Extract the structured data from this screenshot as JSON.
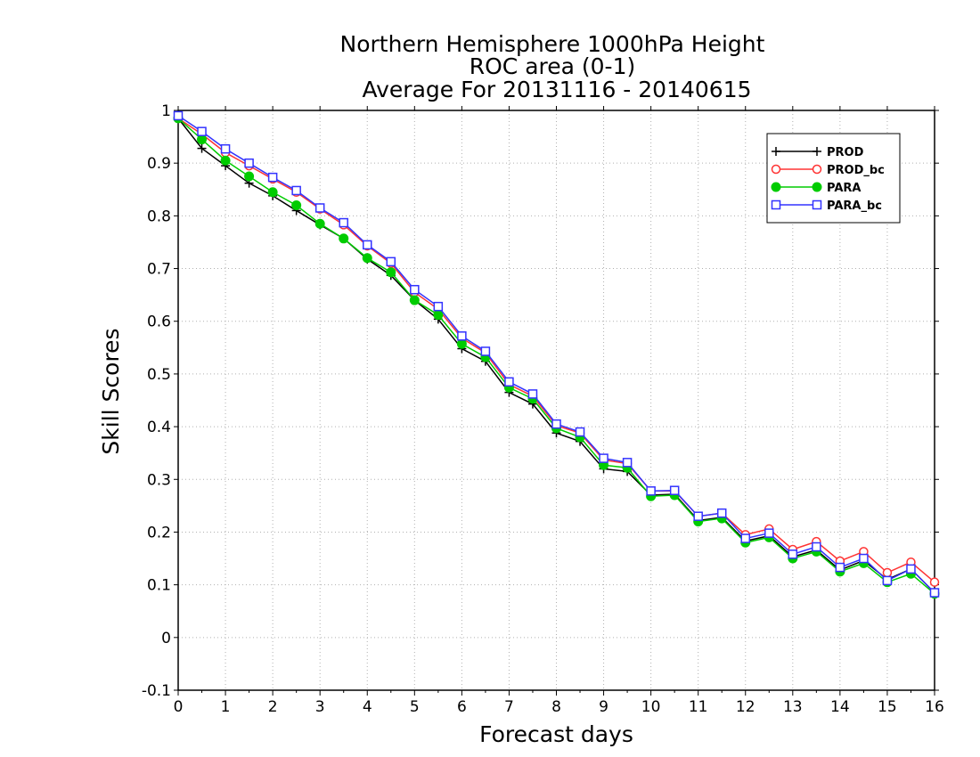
{
  "chart_data": {
    "type": "line",
    "title": [
      "Northern Hemisphere 1000hPa Height",
      "ROC area (0-1)",
      "Average For 20131116 - 20140615"
    ],
    "xlabel": "Forecast days",
    "ylabel": "Skill Scores",
    "xlim": [
      0,
      16
    ],
    "ylim": [
      -0.1,
      1
    ],
    "xticks": [
      "0",
      "1",
      "2",
      "3",
      "4",
      "5",
      "6",
      "7",
      "8",
      "9",
      "10",
      "11",
      "12",
      "13",
      "14",
      "15",
      "16"
    ],
    "yticks": [
      "-0.1",
      "0",
      "0.1",
      "0.2",
      "0.3",
      "0.4",
      "0.5",
      "0.6",
      "0.7",
      "0.8",
      "0.9",
      "1"
    ],
    "grid": true,
    "legend_position": "top-right",
    "x": [
      0,
      0.5,
      1,
      1.5,
      2,
      2.5,
      3,
      3.5,
      4,
      4.5,
      5,
      5.5,
      6,
      6.5,
      7,
      7.5,
      8,
      8.5,
      9,
      9.5,
      10,
      10.5,
      11,
      11.5,
      12,
      12.5,
      13,
      13.5,
      14,
      14.5,
      15,
      15.5,
      16
    ],
    "series": [
      {
        "name": "PROD",
        "color": "#000000",
        "marker": "plus",
        "values": [
          0.985,
          0.928,
          0.895,
          0.862,
          0.838,
          0.81,
          0.783,
          0.757,
          0.718,
          0.687,
          0.64,
          0.604,
          0.548,
          0.524,
          0.465,
          0.443,
          0.388,
          0.372,
          0.32,
          0.315,
          0.27,
          0.272,
          0.222,
          0.228,
          0.183,
          0.193,
          0.153,
          0.166,
          0.128,
          0.146,
          0.11,
          0.13,
          0.085
        ]
      },
      {
        "name": "PROD_bc",
        "color": "#ff3333",
        "marker": "circle-open",
        "values": [
          0.985,
          0.955,
          0.92,
          0.895,
          0.87,
          0.845,
          0.813,
          0.783,
          0.743,
          0.71,
          0.655,
          0.623,
          0.568,
          0.54,
          0.48,
          0.458,
          0.402,
          0.388,
          0.337,
          0.33,
          0.278,
          0.278,
          0.23,
          0.236,
          0.195,
          0.206,
          0.167,
          0.182,
          0.145,
          0.163,
          0.123,
          0.143,
          0.105
        ]
      },
      {
        "name": "PARA",
        "color": "#00cc00",
        "marker": "circle-filled",
        "values": [
          0.985,
          0.945,
          0.905,
          0.875,
          0.845,
          0.82,
          0.785,
          0.757,
          0.72,
          0.693,
          0.64,
          0.612,
          0.557,
          0.532,
          0.474,
          0.453,
          0.397,
          0.38,
          0.327,
          0.322,
          0.268,
          0.27,
          0.22,
          0.226,
          0.18,
          0.19,
          0.15,
          0.163,
          0.125,
          0.141,
          0.105,
          0.121,
          0.083
        ]
      },
      {
        "name": "PARA_bc",
        "color": "#3333ff",
        "marker": "square-open",
        "values": [
          0.99,
          0.96,
          0.927,
          0.9,
          0.873,
          0.848,
          0.815,
          0.787,
          0.745,
          0.713,
          0.66,
          0.628,
          0.572,
          0.543,
          0.485,
          0.462,
          0.405,
          0.39,
          0.34,
          0.332,
          0.278,
          0.279,
          0.23,
          0.236,
          0.188,
          0.198,
          0.158,
          0.172,
          0.133,
          0.15,
          0.108,
          0.13,
          0.085
        ]
      }
    ]
  }
}
